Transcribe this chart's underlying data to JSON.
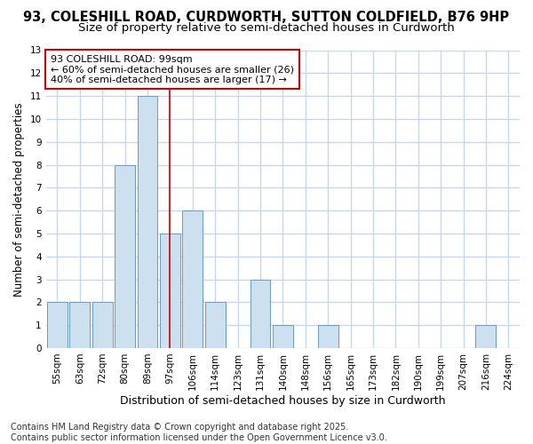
{
  "title_line1": "93, COLESHILL ROAD, CURDWORTH, SUTTON COLDFIELD, B76 9HP",
  "title_line2": "Size of property relative to semi-detached houses in Curdworth",
  "xlabel": "Distribution of semi-detached houses by size in Curdworth",
  "ylabel": "Number of semi-detached properties",
  "categories": [
    "55sqm",
    "63sqm",
    "72sqm",
    "80sqm",
    "89sqm",
    "97sqm",
    "106sqm",
    "114sqm",
    "123sqm",
    "131sqm",
    "140sqm",
    "148sqm",
    "156sqm",
    "165sqm",
    "173sqm",
    "182sqm",
    "190sqm",
    "199sqm",
    "207sqm",
    "216sqm",
    "224sqm"
  ],
  "values": [
    2,
    2,
    2,
    8,
    11,
    5,
    6,
    2,
    0,
    3,
    1,
    0,
    1,
    0,
    0,
    0,
    0,
    0,
    0,
    1,
    0
  ],
  "bar_color": "#cce0f0",
  "bar_edge_color": "#6699cc",
  "highlight_bar_index": 5,
  "highlight_line_color": "#cc0000",
  "annotation_text": "93 COLESHILL ROAD: 99sqm\n← 60% of semi-detached houses are smaller (26)\n40% of semi-detached houses are larger (17) →",
  "annotation_box_color": "#ffffff",
  "annotation_box_edge": "#cc0000",
  "ylim": [
    0,
    13
  ],
  "yticks": [
    0,
    1,
    2,
    3,
    4,
    5,
    6,
    7,
    8,
    9,
    10,
    11,
    12,
    13
  ],
  "footer_text": "Contains HM Land Registry data © Crown copyright and database right 2025.\nContains public sector information licensed under the Open Government Licence v3.0.",
  "bg_color": "#ffffff",
  "plot_bg_color": "#ffffff",
  "grid_color": "#c8d8e8",
  "title_fontsize": 10.5,
  "subtitle_fontsize": 9.5,
  "tick_fontsize": 7.5,
  "footer_fontsize": 7
}
